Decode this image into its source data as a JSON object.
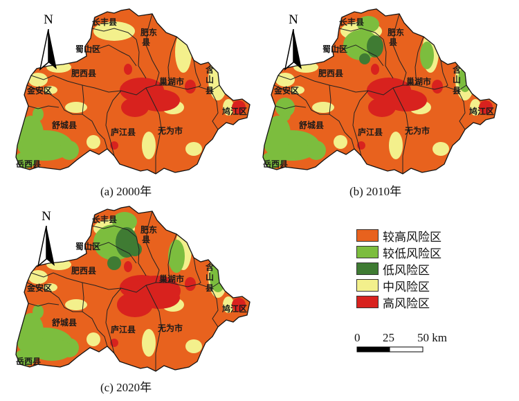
{
  "maps": [
    {
      "caption": "(a) 2000年",
      "variant": "a"
    },
    {
      "caption": "(b) 2010年",
      "variant": "b"
    },
    {
      "caption": "(c) 2020年",
      "variant": "c"
    }
  ],
  "north_label": "N",
  "region_labels": {
    "changfeng": "长丰县",
    "shushan": "蜀山区",
    "feidong_a": "肥东",
    "feidong_b": "县",
    "feixi": "肥西县",
    "chaohu": "巢湖市",
    "hanshan_1": "含",
    "hanshan_2": "山",
    "hanshan_3": "县",
    "jinan": "金安区",
    "shucheng": "舒城县",
    "lujiang": "庐江县",
    "wuwei": "无为市",
    "jiujiang": "鸠江区",
    "yuexi": "岳西县"
  },
  "legend": [
    {
      "label": "较高风险区",
      "color": "#e8621e"
    },
    {
      "label": "较低风险区",
      "color": "#7cbd3e"
    },
    {
      "label": "低风险区",
      "color": "#3f7b33"
    },
    {
      "label": "中风险区",
      "color": "#f3f08c"
    },
    {
      "label": "高风险区",
      "color": "#d8221e"
    }
  ],
  "scale_bar": {
    "ticks": [
      "0",
      "25",
      "50 km"
    ]
  }
}
